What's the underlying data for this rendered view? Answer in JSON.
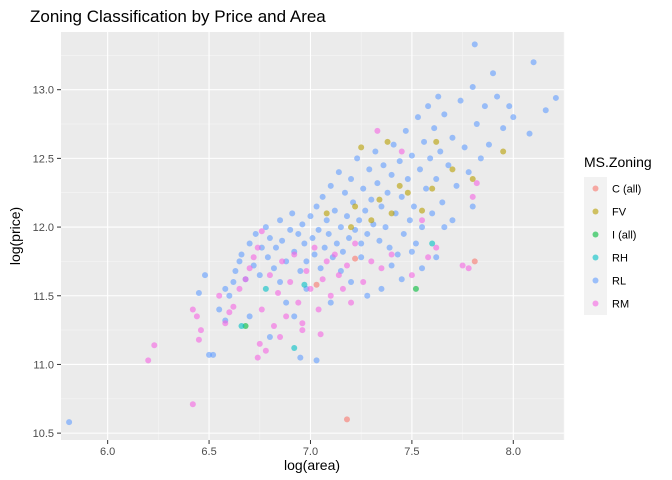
{
  "chart_data": {
    "type": "scatter",
    "title": "Zoning Classification by Price and Area",
    "xlabel": "log(area)",
    "ylabel": "log(price)",
    "xlim": [
      5.77,
      8.25
    ],
    "ylim": [
      10.45,
      13.42
    ],
    "x_ticks": [
      "6.0",
      "6.5",
      "7.0",
      "7.5",
      "8.0"
    ],
    "y_ticks": [
      "10.5",
      "11.0",
      "11.5",
      "12.0",
      "12.5",
      "13.0"
    ],
    "grid": true,
    "legend": {
      "title": "MS.Zoning",
      "position": "right"
    },
    "series": [
      {
        "name": "C (all)",
        "color": "#F8766D",
        "points": [
          [
            7.18,
            10.6
          ],
          [
            7.81,
            11.75
          ],
          [
            7.22,
            11.77
          ],
          [
            7.03,
            11.58
          ]
        ]
      },
      {
        "name": "FV",
        "color": "#B79F00",
        "points": [
          [
            7.25,
            12.58
          ],
          [
            7.38,
            12.62
          ],
          [
            7.62,
            12.62
          ],
          [
            7.95,
            12.55
          ],
          [
            7.7,
            12.42
          ],
          [
            7.44,
            12.3
          ],
          [
            7.6,
            12.28
          ],
          [
            7.8,
            12.35
          ],
          [
            7.34,
            12.2
          ],
          [
            7.22,
            12.15
          ],
          [
            7.4,
            12.1
          ],
          [
            7.08,
            12.1
          ],
          [
            7.3,
            12.05
          ],
          [
            7.55,
            12.12
          ],
          [
            7.48,
            12.25
          ],
          [
            7.2,
            12.0
          ]
        ]
      },
      {
        "name": "I (all)",
        "color": "#00BA38",
        "points": [
          [
            7.52,
            11.55
          ],
          [
            6.68,
            11.28
          ]
        ]
      },
      {
        "name": "RH",
        "color": "#00BFC4",
        "points": [
          [
            6.92,
            11.12
          ],
          [
            6.97,
            11.58
          ],
          [
            7.6,
            11.88
          ],
          [
            6.78,
            11.55
          ],
          [
            6.66,
            11.28
          ]
        ]
      },
      {
        "name": "RL",
        "color": "#619CFF",
        "points": [
          [
            5.81,
            10.58
          ],
          [
            6.5,
            11.07
          ],
          [
            6.52,
            11.07
          ],
          [
            6.55,
            11.4
          ],
          [
            6.58,
            11.32
          ],
          [
            6.6,
            11.5
          ],
          [
            6.62,
            11.6
          ],
          [
            6.63,
            11.68
          ],
          [
            6.65,
            11.75
          ],
          [
            6.66,
            11.8
          ],
          [
            6.68,
            11.62
          ],
          [
            6.7,
            11.88
          ],
          [
            6.72,
            11.72
          ],
          [
            6.73,
            11.95
          ],
          [
            6.75,
            11.65
          ],
          [
            6.76,
            11.85
          ],
          [
            6.78,
            12.0
          ],
          [
            6.79,
            11.78
          ],
          [
            6.8,
            11.92
          ],
          [
            6.82,
            11.7
          ],
          [
            6.83,
            11.85
          ],
          [
            6.85,
            12.05
          ],
          [
            6.86,
            11.9
          ],
          [
            6.88,
            11.75
          ],
          [
            6.9,
            11.98
          ],
          [
            6.91,
            12.1
          ],
          [
            6.92,
            11.82
          ],
          [
            6.94,
            11.95
          ],
          [
            6.95,
            11.68
          ],
          [
            6.96,
            12.02
          ],
          [
            6.97,
            11.88
          ],
          [
            6.98,
            11.75
          ],
          [
            7.0,
            12.08
          ],
          [
            7.01,
            11.92
          ],
          [
            7.02,
            11.8
          ],
          [
            7.03,
            12.15
          ],
          [
            7.04,
            11.98
          ],
          [
            7.05,
            11.7
          ],
          [
            7.06,
            12.22
          ],
          [
            7.07,
            11.85
          ],
          [
            7.08,
            12.05
          ],
          [
            7.09,
            11.95
          ],
          [
            7.1,
            12.3
          ],
          [
            7.11,
            11.78
          ],
          [
            7.12,
            12.12
          ],
          [
            7.13,
            11.88
          ],
          [
            7.14,
            12.4
          ],
          [
            7.15,
            12.0
          ],
          [
            7.16,
            11.82
          ],
          [
            7.17,
            12.25
          ],
          [
            7.18,
            12.08
          ],
          [
            7.19,
            11.92
          ],
          [
            7.2,
            12.35
          ],
          [
            7.21,
            12.18
          ],
          [
            7.22,
            11.98
          ],
          [
            7.23,
            12.5
          ],
          [
            7.24,
            12.05
          ],
          [
            7.25,
            11.88
          ],
          [
            7.26,
            12.28
          ],
          [
            7.27,
            12.12
          ],
          [
            7.28,
            11.95
          ],
          [
            7.29,
            12.42
          ],
          [
            7.3,
            12.2
          ],
          [
            7.31,
            12.02
          ],
          [
            7.32,
            12.55
          ],
          [
            7.33,
            12.32
          ],
          [
            7.34,
            11.9
          ],
          [
            7.35,
            12.15
          ],
          [
            7.36,
            12.45
          ],
          [
            7.37,
            12.0
          ],
          [
            7.38,
            12.25
          ],
          [
            7.39,
            11.85
          ],
          [
            7.4,
            12.38
          ],
          [
            7.41,
            12.6
          ],
          [
            7.42,
            12.1
          ],
          [
            7.43,
            11.8
          ],
          [
            7.44,
            12.48
          ],
          [
            7.45,
            12.22
          ],
          [
            7.46,
            11.95
          ],
          [
            7.47,
            12.7
          ],
          [
            7.48,
            12.35
          ],
          [
            7.49,
            12.05
          ],
          [
            7.5,
            12.52
          ],
          [
            7.51,
            12.15
          ],
          [
            7.52,
            11.88
          ],
          [
            7.53,
            12.8
          ],
          [
            7.54,
            12.42
          ],
          [
            7.55,
            12.0
          ],
          [
            7.56,
            12.62
          ],
          [
            7.57,
            12.28
          ],
          [
            7.58,
            12.88
          ],
          [
            7.59,
            12.5
          ],
          [
            7.6,
            12.1
          ],
          [
            7.61,
            12.72
          ],
          [
            7.62,
            12.35
          ],
          [
            7.63,
            12.95
          ],
          [
            7.64,
            12.55
          ],
          [
            7.65,
            12.18
          ],
          [
            7.66,
            12.82
          ],
          [
            7.68,
            12.45
          ],
          [
            7.7,
            12.65
          ],
          [
            7.72,
            12.3
          ],
          [
            7.74,
            12.92
          ],
          [
            7.76,
            12.58
          ],
          [
            7.78,
            12.4
          ],
          [
            7.8,
            13.02
          ],
          [
            7.82,
            12.75
          ],
          [
            7.84,
            12.5
          ],
          [
            7.86,
            12.88
          ],
          [
            7.88,
            12.6
          ],
          [
            7.9,
            13.12
          ],
          [
            7.92,
            12.95
          ],
          [
            7.95,
            12.72
          ],
          [
            7.98,
            12.88
          ],
          [
            8.0,
            12.8
          ],
          [
            7.81,
            13.33
          ],
          [
            8.1,
            13.2
          ],
          [
            8.16,
            12.85
          ],
          [
            8.21,
            12.94
          ],
          [
            8.08,
            12.68
          ],
          [
            6.95,
            11.05
          ],
          [
            7.03,
            11.03
          ],
          [
            6.8,
            11.2
          ],
          [
            7.1,
            11.45
          ],
          [
            7.28,
            11.5
          ],
          [
            7.35,
            11.55
          ],
          [
            7.45,
            11.62
          ],
          [
            7.15,
            11.68
          ],
          [
            6.88,
            11.45
          ],
          [
            7.62,
            11.78
          ],
          [
            7.7,
            12.05
          ],
          [
            7.55,
            11.7
          ],
          [
            7.25,
            11.78
          ],
          [
            6.98,
            11.55
          ],
          [
            6.58,
            11.55
          ],
          [
            6.45,
            11.52
          ],
          [
            6.48,
            11.65
          ],
          [
            6.7,
            11.35
          ],
          [
            7.4,
            11.72
          ],
          [
            7.8,
            12.15
          ],
          [
            7.66,
            12.0
          ],
          [
            7.5,
            11.82
          ],
          [
            7.2,
            11.6
          ],
          [
            6.92,
            11.35
          ],
          [
            6.85,
            11.6
          ]
        ]
      },
      {
        "name": "RM",
        "color": "#F564E3",
        "points": [
          [
            6.2,
            11.03
          ],
          [
            6.23,
            11.14
          ],
          [
            6.42,
            10.71
          ],
          [
            6.42,
            11.4
          ],
          [
            6.44,
            11.35
          ],
          [
            6.46,
            11.25
          ],
          [
            6.45,
            11.18
          ],
          [
            6.55,
            11.5
          ],
          [
            6.58,
            11.3
          ],
          [
            6.62,
            11.42
          ],
          [
            6.65,
            11.55
          ],
          [
            6.68,
            11.62
          ],
          [
            6.7,
            11.7
          ],
          [
            6.72,
            11.78
          ],
          [
            6.74,
            11.85
          ],
          [
            6.75,
            11.15
          ],
          [
            6.76,
            11.4
          ],
          [
            6.78,
            11.1
          ],
          [
            6.8,
            11.65
          ],
          [
            6.82,
            11.28
          ],
          [
            6.84,
            11.52
          ],
          [
            6.86,
            11.75
          ],
          [
            6.88,
            11.35
          ],
          [
            6.9,
            11.6
          ],
          [
            6.92,
            11.8
          ],
          [
            6.94,
            11.45
          ],
          [
            6.96,
            11.3
          ],
          [
            6.98,
            11.68
          ],
          [
            7.0,
            11.55
          ],
          [
            7.02,
            11.85
          ],
          [
            7.04,
            11.4
          ],
          [
            7.06,
            11.62
          ],
          [
            7.08,
            11.75
          ],
          [
            7.1,
            11.5
          ],
          [
            7.12,
            11.8
          ],
          [
            7.14,
            11.65
          ],
          [
            7.16,
            11.55
          ],
          [
            7.18,
            11.72
          ],
          [
            7.2,
            11.45
          ],
          [
            7.22,
            11.88
          ],
          [
            7.26,
            11.6
          ],
          [
            7.3,
            11.75
          ],
          [
            7.33,
            12.7
          ],
          [
            7.35,
            11.7
          ],
          [
            7.4,
            11.8
          ],
          [
            7.5,
            11.65
          ],
          [
            7.58,
            11.78
          ],
          [
            7.62,
            11.85
          ],
          [
            7.75,
            11.72
          ],
          [
            7.78,
            11.7
          ],
          [
            7.82,
            12.32
          ],
          [
            7.8,
            12.22
          ],
          [
            7.45,
            12.55
          ],
          [
            7.55,
            12.05
          ],
          [
            6.76,
            11.97
          ],
          [
            6.96,
            11.25
          ],
          [
            7.05,
            11.22
          ],
          [
            6.6,
            11.38
          ],
          [
            6.74,
            11.05
          ],
          [
            6.85,
            11.2
          ]
        ]
      }
    ]
  }
}
